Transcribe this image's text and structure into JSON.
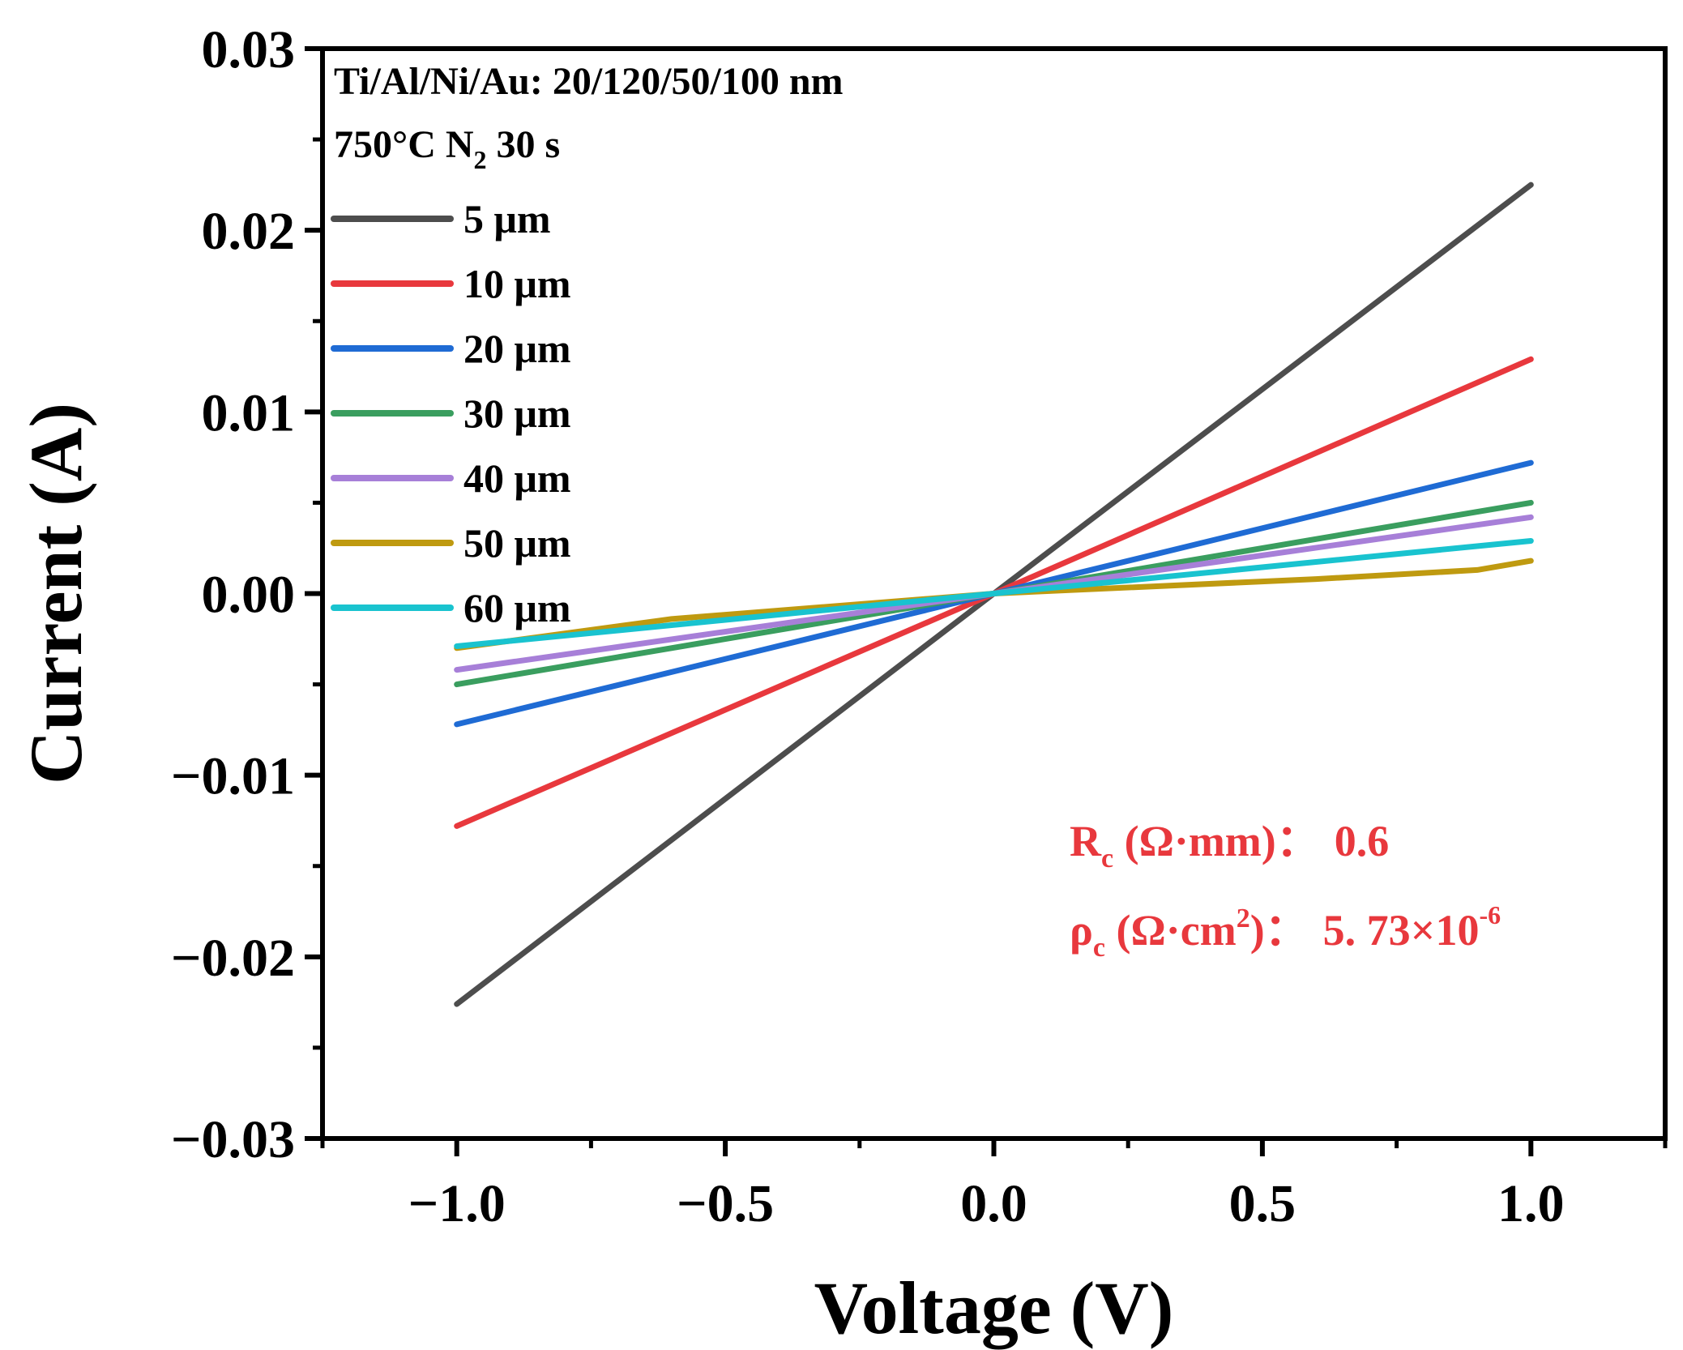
{
  "chart_data": {
    "type": "line",
    "xlabel": "Voltage (V)",
    "ylabel": "Current (A)",
    "xlim": [
      -1.25,
      1.25
    ],
    "ylim": [
      -0.03,
      0.03
    ],
    "x_ticks": [
      -1.0,
      -0.5,
      0.0,
      0.5,
      1.0
    ],
    "x_tick_labels": [
      "−1.0",
      "−0.5",
      "0.0",
      "0.5",
      "1.0"
    ],
    "y_ticks": [
      0.03,
      0.02,
      0.01,
      0.0,
      -0.01,
      -0.02,
      -0.03
    ],
    "y_tick_labels": [
      "0.03",
      "0.02",
      "0.01",
      "0.00",
      "−0.01",
      "−0.02",
      "−0.03"
    ],
    "grid": false,
    "legend_position": "top-left",
    "annotations": {
      "metal_stack": "Ti/Al/Ni/Au: 20/120/50/100 nm",
      "anneal_prefix": "750°C N",
      "anneal_sub": "2",
      "anneal_suffix": " 30 s",
      "rc_symbol": "R",
      "rc_sub": "c",
      "rc_unit": " (Ω·mm)：",
      "rc_value": "0.6",
      "rho_symbol": "ρ",
      "rho_sub": "c",
      "rho_unit": " (Ω·cm",
      "rho_unit_sup": "2",
      "rho_unit_close": ")：",
      "rho_value": "5. 73×10",
      "rho_exp": "-6"
    },
    "series": [
      {
        "name": "5 μm",
        "color": "#4d4d4d",
        "x": [
          -1.0,
          0.0,
          1.0
        ],
        "y": [
          -0.0226,
          0.0,
          0.0225
        ]
      },
      {
        "name": "10 μm",
        "color": "#e8383d",
        "x": [
          -1.0,
          0.0,
          1.0
        ],
        "y": [
          -0.0128,
          0.0,
          0.0129
        ]
      },
      {
        "name": "20 μm",
        "color": "#1f6bd4",
        "x": [
          -1.0,
          0.0,
          1.0
        ],
        "y": [
          -0.0072,
          0.0,
          0.0072
        ]
      },
      {
        "name": "30 μm",
        "color": "#3a9e5f",
        "x": [
          -1.0,
          0.0,
          1.0
        ],
        "y": [
          -0.005,
          0.0,
          0.005
        ]
      },
      {
        "name": "40 μm",
        "color": "#a77fd8",
        "x": [
          -1.0,
          0.0,
          1.0
        ],
        "y": [
          -0.0042,
          0.0,
          0.0042
        ]
      },
      {
        "name": "50 μm",
        "color": "#bf9a10",
        "x": [
          -1.0,
          -0.6,
          0.0,
          0.6,
          0.9,
          1.0
        ],
        "y": [
          -0.003,
          -0.0014,
          0.0,
          0.0008,
          0.0013,
          0.0018
        ]
      },
      {
        "name": "60 μm",
        "color": "#19c3cf",
        "x": [
          -1.0,
          0.0,
          1.0
        ],
        "y": [
          -0.0029,
          0.0,
          0.0029
        ]
      }
    ]
  }
}
